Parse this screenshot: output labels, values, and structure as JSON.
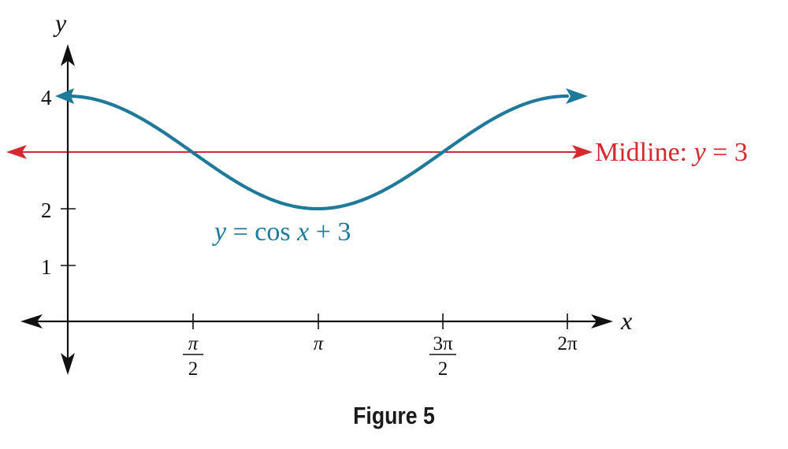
{
  "chart_data": {
    "type": "line",
    "title": "",
    "caption": "Figure 5",
    "xlabel": "x",
    "ylabel": "y",
    "x_ticks": [
      {
        "value": 1.5708,
        "label_num": "π",
        "label_den": "2"
      },
      {
        "value": 3.1416,
        "label": "π"
      },
      {
        "value": 4.7124,
        "label_num": "3π",
        "label_den": "2"
      },
      {
        "value": 6.2832,
        "label": "2π"
      }
    ],
    "y_ticks": [
      {
        "value": 1,
        "label": "1"
      },
      {
        "value": 2,
        "label": "2"
      },
      {
        "value": 4,
        "label": "4"
      }
    ],
    "xlim": [
      0,
      6.2832
    ],
    "ylim": [
      0,
      4
    ],
    "grid": false,
    "series": [
      {
        "name": "y = cos x + 3",
        "color": "#1f7a9a",
        "function": "cos(x) + 3",
        "x": [
          0,
          0.7854,
          1.5708,
          2.3562,
          3.1416,
          3.927,
          4.7124,
          5.4978,
          6.2832
        ],
        "values": [
          4,
          3.71,
          3,
          2.29,
          2,
          2.29,
          3,
          3.71,
          4
        ]
      },
      {
        "name": "Midline: y = 3",
        "color": "#d42a2f",
        "function": "3",
        "x": [
          0,
          6.2832
        ],
        "values": [
          3,
          3
        ]
      }
    ],
    "annotations": [
      {
        "text": "y = cos x + 3",
        "color": "#1f7a9a"
      },
      {
        "text": "Midline: y = 3",
        "color": "#d42a2f"
      }
    ]
  },
  "labels": {
    "axis_x": "x",
    "axis_y": "y",
    "ytick_4": "4",
    "ytick_2": "2",
    "ytick_1": "1",
    "xtick_pi_over_2_num": "π",
    "xtick_pi_over_2_den": "2",
    "xtick_pi": "π",
    "xtick_3pi_over_2_num": "3π",
    "xtick_3pi_over_2_den": "2",
    "xtick_2pi": "2π",
    "curve_label_y": "y",
    "curve_label_rest": " = cos ",
    "curve_label_x": "x",
    "curve_label_end": " + 3",
    "midline_label_text": "Midline: ",
    "midline_label_y": "y",
    "midline_label_end": " = 3",
    "caption": "Figure 5"
  }
}
